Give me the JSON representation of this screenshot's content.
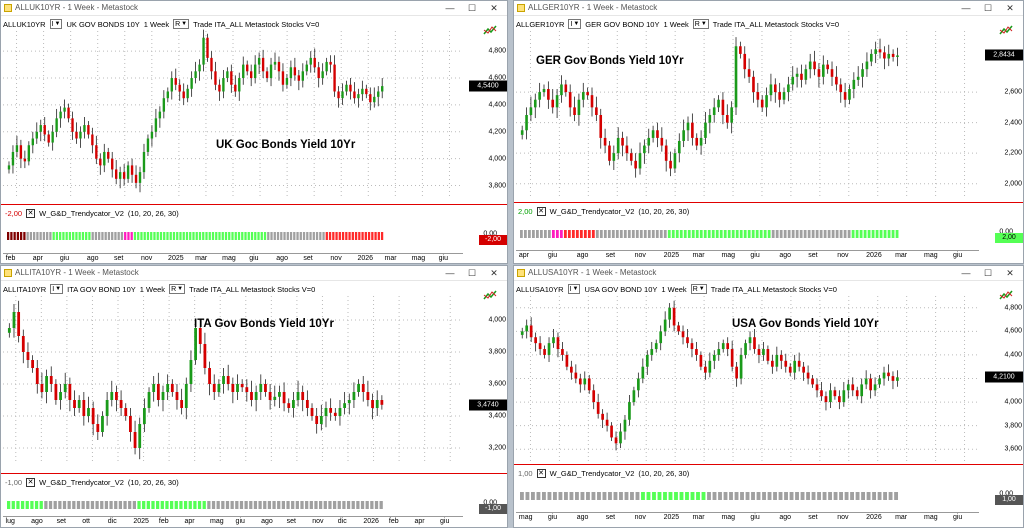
{
  "windows": [
    {
      "title": "ALLUK10YR - 1 Week - Metastock",
      "symbol": "ALLUK10YR",
      "type_sel": "I",
      "descr_sel": "UK GOV BONDS 10Y",
      "period": "1 Week",
      "r_sel": "R",
      "toolbar_rest": "Trade  ITA_ALL  Metastock  Stocks  V=0",
      "chart_title": "UK Goc Bonds Yield 10Yr",
      "last_price": "4,5400",
      "yticks": [
        "4,800",
        "4,600",
        "4,400",
        "4,200",
        "4,000",
        "3,800"
      ],
      "indicator_name": "W_G&D_Trendycator_V2",
      "indicator_params": "(10,  20,  26,  30)",
      "indicator_value": "-2,00",
      "ind_ticks": [
        "0,00"
      ],
      "ind_badge": "-2,00",
      "xlabels": [
        "feb",
        "apr",
        "giu",
        "ago",
        "set",
        "nov",
        "2025",
        "mar",
        "mag",
        "giu",
        "ago",
        "set",
        "nov",
        "2026",
        "mar",
        "mag",
        "giu"
      ],
      "chart_data": {
        "type": "candlestick",
        "title": "UK Goc Bonds Yield 10Yr",
        "ylim": [
          3.7,
          4.95
        ],
        "x_range": [
          "2024-01",
          "2026-07"
        ],
        "closes": [
          3.95,
          4.05,
          4.1,
          4.0,
          3.98,
          4.1,
          4.15,
          4.2,
          4.25,
          4.18,
          4.12,
          4.2,
          4.3,
          4.35,
          4.38,
          4.3,
          4.2,
          4.15,
          4.2,
          4.25,
          4.18,
          4.1,
          4.0,
          3.95,
          4.05,
          4.0,
          3.92,
          3.85,
          3.9,
          3.85,
          3.95,
          3.88,
          3.82,
          3.9,
          4.05,
          4.15,
          4.2,
          4.3,
          4.35,
          4.45,
          4.5,
          4.6,
          4.55,
          4.5,
          4.45,
          4.52,
          4.6,
          4.65,
          4.7,
          4.9,
          4.75,
          4.65,
          4.55,
          4.5,
          4.6,
          4.65,
          4.55,
          4.5,
          4.6,
          4.7,
          4.65,
          4.6,
          4.7,
          4.75,
          4.65,
          4.6,
          4.7,
          4.72,
          4.65,
          4.55,
          4.6,
          4.68,
          4.62,
          4.58,
          4.65,
          4.7,
          4.75,
          4.68,
          4.6,
          4.65,
          4.72,
          4.7,
          4.5,
          4.45,
          4.5,
          4.55,
          4.5,
          4.45,
          4.48,
          4.52,
          4.48,
          4.42,
          4.46,
          4.5,
          4.54
        ],
        "indicator_blocks": [
          {
            "color": "#7f0000",
            "count": 6
          },
          {
            "color": "#a0a0a0",
            "count": 8
          },
          {
            "color": "#55ff55",
            "count": 12
          },
          {
            "color": "#a0a0a0",
            "count": 10
          },
          {
            "color": "#ff1cbf",
            "count": 3
          },
          {
            "color": "#55ff55",
            "count": 3
          },
          {
            "color": "#55ff55",
            "count": 38
          },
          {
            "color": "#a0a0a0",
            "count": 18
          },
          {
            "color": "#ff2a2a",
            "count": 18
          }
        ]
      }
    },
    {
      "title": "ALLGER10YR - 1 Week - Metastock",
      "symbol": "ALLGER10YR",
      "type_sel": "I",
      "descr_sel": "GER GOV BOND 10Y",
      "period": "1 Week",
      "r_sel": "R",
      "toolbar_rest": "Trade  ITA_ALL  Metastock  Stocks  V=0",
      "chart_title": "GER Gov Bonds Yield 10Yr",
      "last_price": "2,8434",
      "yticks": [
        "2,600",
        "2,400",
        "2,200",
        "2,000"
      ],
      "indicator_name": "W_G&D_Trendycator_V2",
      "indicator_params": "(10,  20,  26,  30)",
      "indicator_value": "2,00",
      "ind_ticks": [
        "0,00"
      ],
      "ind_badge": "2,00",
      "xlabels": [
        "apr",
        "giu",
        "ago",
        "set",
        "nov",
        "2025",
        "mar",
        "mag",
        "giu",
        "ago",
        "set",
        "nov",
        "2026",
        "mar",
        "mag",
        "giu"
      ],
      "chart_data": {
        "type": "candlestick",
        "title": "GER Gov Bonds Yield 10Yr",
        "ylim": [
          1.9,
          3.0
        ],
        "closes": [
          2.35,
          2.45,
          2.5,
          2.55,
          2.6,
          2.62,
          2.55,
          2.5,
          2.58,
          2.65,
          2.6,
          2.5,
          2.45,
          2.55,
          2.6,
          2.58,
          2.5,
          2.45,
          2.3,
          2.25,
          2.15,
          2.2,
          2.3,
          2.25,
          2.2,
          2.15,
          2.1,
          2.2,
          2.25,
          2.3,
          2.35,
          2.3,
          2.25,
          2.15,
          2.1,
          2.2,
          2.28,
          2.35,
          2.4,
          2.3,
          2.25,
          2.3,
          2.4,
          2.45,
          2.5,
          2.55,
          2.45,
          2.4,
          2.5,
          2.9,
          2.85,
          2.75,
          2.7,
          2.6,
          2.55,
          2.5,
          2.58,
          2.65,
          2.6,
          2.55,
          2.6,
          2.65,
          2.7,
          2.72,
          2.68,
          2.75,
          2.8,
          2.75,
          2.7,
          2.78,
          2.75,
          2.7,
          2.65,
          2.6,
          2.55,
          2.62,
          2.68,
          2.7,
          2.75,
          2.8,
          2.85,
          2.88,
          2.86,
          2.82,
          2.85,
          2.83,
          2.84
        ],
        "indicator_blocks": [
          {
            "color": "#a0a0a0",
            "count": 8
          },
          {
            "color": "#ff1cbf",
            "count": 3
          },
          {
            "color": "#ff2a2a",
            "count": 8
          },
          {
            "color": "#a0a0a0",
            "count": 12
          },
          {
            "color": "#a0a0a0",
            "count": 6
          },
          {
            "color": "#55ff55",
            "count": 26
          },
          {
            "color": "#a0a0a0",
            "count": 20
          },
          {
            "color": "#55ff55",
            "count": 12
          }
        ]
      }
    },
    {
      "title": "ALLITA10YR - 1 Week - Metastock",
      "symbol": "ALLITA10YR",
      "type_sel": "I",
      "descr_sel": "ITA GOV BOND 10Y",
      "period": "1 Week",
      "r_sel": "R",
      "toolbar_rest": "Trade  ITA_ALL  Metastock  Stocks  V=0",
      "chart_title": "ITA Gov Bonds Yield 10Yr",
      "last_price": "3,4740",
      "yticks": [
        "4,000",
        "3,800",
        "3,600",
        "3,400",
        "3,200"
      ],
      "indicator_name": "W_G&D_Trendycator_V2",
      "indicator_params": "(10,  20,  26,  30)",
      "indicator_value": "-1,00",
      "ind_ticks": [
        "0,00"
      ],
      "ind_badge": "-1,00",
      "xlabels": [
        "lug",
        "ago",
        "set",
        "ott",
        "dic",
        "2025",
        "feb",
        "apr",
        "mag",
        "giu",
        "ago",
        "set",
        "nov",
        "dic",
        "2026",
        "feb",
        "apr",
        "giu"
      ],
      "chart_data": {
        "type": "candlestick",
        "title": "ITA Gov Bonds Yield 10Yr",
        "ylim": [
          3.1,
          4.15
        ],
        "closes": [
          3.95,
          4.05,
          3.9,
          3.8,
          3.75,
          3.7,
          3.6,
          3.55,
          3.65,
          3.6,
          3.5,
          3.55,
          3.6,
          3.5,
          3.45,
          3.5,
          3.4,
          3.45,
          3.35,
          3.3,
          3.4,
          3.5,
          3.55,
          3.5,
          3.45,
          3.4,
          3.3,
          3.2,
          3.35,
          3.45,
          3.55,
          3.6,
          3.5,
          3.55,
          3.6,
          3.55,
          3.5,
          3.45,
          3.6,
          3.75,
          3.95,
          3.85,
          3.7,
          3.6,
          3.55,
          3.6,
          3.65,
          3.6,
          3.55,
          3.6,
          3.58,
          3.55,
          3.5,
          3.55,
          3.6,
          3.55,
          3.5,
          3.52,
          3.55,
          3.48,
          3.45,
          3.5,
          3.55,
          3.5,
          3.45,
          3.4,
          3.35,
          3.4,
          3.45,
          3.42,
          3.4,
          3.45,
          3.48,
          3.5,
          3.55,
          3.6,
          3.55,
          3.5,
          3.45,
          3.5,
          3.47
        ],
        "indicator_blocks": [
          {
            "color": "#55ff55",
            "count": 8
          },
          {
            "color": "#a0a0a0",
            "count": 20
          },
          {
            "color": "#55ff55",
            "count": 15
          },
          {
            "color": "#a0a0a0",
            "count": 8
          },
          {
            "color": "#a0a0a0",
            "count": 30
          }
        ]
      }
    },
    {
      "title": "ALLUSA10YR - 1 Week - Metastock",
      "symbol": "ALLUSA10YR",
      "type_sel": "I",
      "descr_sel": "USA GOV BOND 10Y",
      "period": "1 Week",
      "r_sel": "R",
      "toolbar_rest": "Trade  ITA_ALL  Metastock  Stocks  V=0",
      "chart_title": "USA Gov Bonds Yield 10Yr",
      "last_price": "4,2100",
      "yticks": [
        "4,800",
        "4,600",
        "4,400",
        "4,200",
        "4,000",
        "3,800",
        "3,600"
      ],
      "indicator_name": "W_G&D_Trendycator_V2",
      "indicator_params": "(10,  20,  26,  30)",
      "indicator_value": "1,00",
      "ind_ticks": [
        "0,00"
      ],
      "ind_badge": "1,00",
      "xlabels": [
        "mag",
        "giu",
        "ago",
        "set",
        "nov",
        "2025",
        "mar",
        "mag",
        "giu",
        "ago",
        "set",
        "nov",
        "2026",
        "mar",
        "mag",
        "giu"
      ],
      "chart_data": {
        "type": "candlestick",
        "title": "USA Gov Bonds Yield 10Yr",
        "ylim": [
          3.5,
          4.9
        ],
        "closes": [
          4.6,
          4.65,
          4.55,
          4.5,
          4.45,
          4.4,
          4.5,
          4.55,
          4.45,
          4.4,
          4.3,
          4.25,
          4.2,
          4.15,
          4.2,
          4.1,
          4.0,
          3.9,
          3.85,
          3.8,
          3.7,
          3.65,
          3.75,
          3.85,
          4.0,
          4.1,
          4.2,
          4.3,
          4.4,
          4.45,
          4.5,
          4.6,
          4.7,
          4.8,
          4.65,
          4.6,
          4.55,
          4.5,
          4.45,
          4.4,
          4.3,
          4.25,
          4.35,
          4.4,
          4.45,
          4.5,
          4.45,
          4.3,
          4.2,
          4.4,
          4.5,
          4.55,
          4.45,
          4.4,
          4.45,
          4.35,
          4.3,
          4.4,
          4.35,
          4.3,
          4.25,
          4.35,
          4.3,
          4.25,
          4.2,
          4.15,
          4.1,
          4.05,
          4.0,
          4.1,
          4.05,
          4.0,
          4.1,
          4.15,
          4.1,
          4.05,
          4.15,
          4.2,
          4.1,
          4.15,
          4.2,
          4.25,
          4.22,
          4.18,
          4.21
        ],
        "indicator_blocks": [
          {
            "color": "#a0a0a0",
            "count": 10
          },
          {
            "color": "#a0a0a0",
            "count": 12
          },
          {
            "color": "#55ff55",
            "count": 12
          },
          {
            "color": "#a0a0a0",
            "count": 20
          },
          {
            "color": "#a0a0a0",
            "count": 15
          }
        ]
      }
    }
  ]
}
